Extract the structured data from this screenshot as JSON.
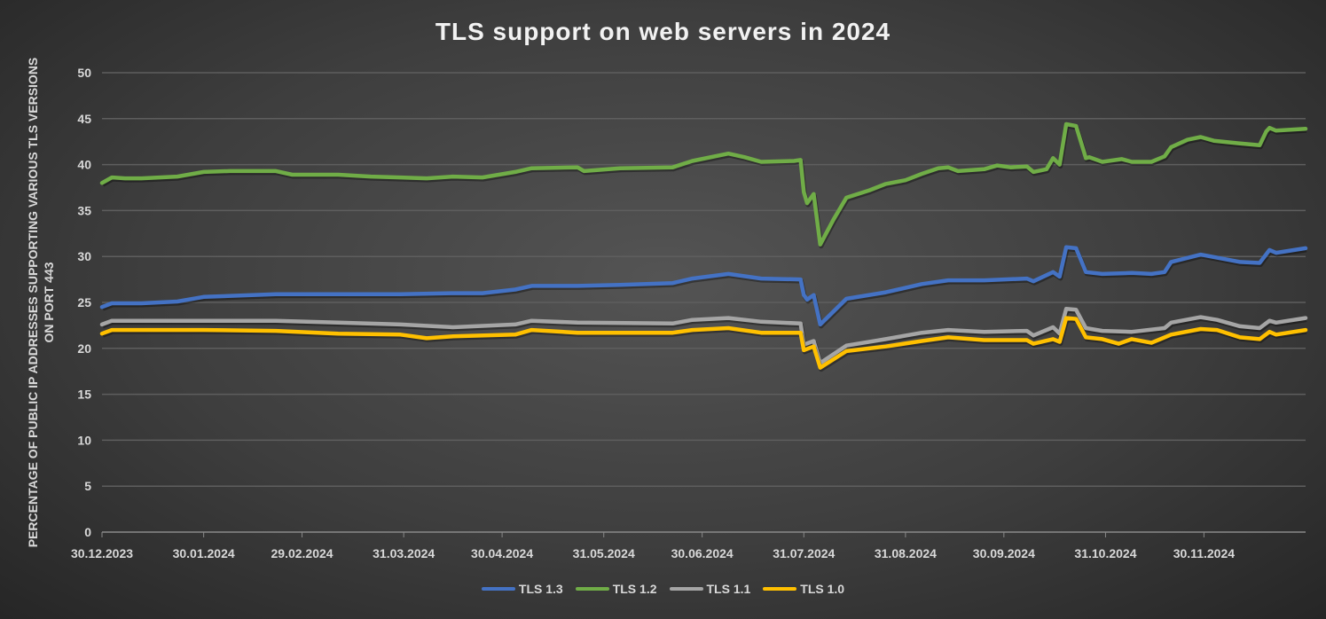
{
  "chart_data": {
    "type": "line",
    "title": "TLS support on web servers in 2024",
    "xlabel": "",
    "ylabel": "PERCENTAGE OF PUBLIC IP ADDRESSES SUPPORTING VARIOUS TLS VERSIONS ON PORT 443",
    "ylim": [
      0,
      50
    ],
    "yticks": [
      0,
      5,
      10,
      15,
      20,
      25,
      30,
      35,
      40,
      45,
      50
    ],
    "x_unit": "days since 30.12.2023",
    "xlim": [
      0,
      367
    ],
    "x_ticks": [
      {
        "label": "30.12.2023",
        "day": 0
      },
      {
        "label": "30.01.2024",
        "day": 31
      },
      {
        "label": "29.02.2024",
        "day": 61
      },
      {
        "label": "31.03.2024",
        "day": 92
      },
      {
        "label": "30.04.2024",
        "day": 122
      },
      {
        "label": "31.05.2024",
        "day": 153
      },
      {
        "label": "30.06.2024",
        "day": 183
      },
      {
        "label": "31.07.2024",
        "day": 214
      },
      {
        "label": "31.08.2024",
        "day": 245
      },
      {
        "label": "30.09.2024",
        "day": 275
      },
      {
        "label": "31.10.2024",
        "day": 306
      },
      {
        "label": "30.11.2024",
        "day": 336
      }
    ],
    "grid": true,
    "legend_position": "bottom",
    "series": [
      {
        "name": "TLS 1.3",
        "color": "#4472c4",
        "points": [
          [
            0,
            24.5
          ],
          [
            3,
            24.9
          ],
          [
            12,
            24.9
          ],
          [
            23,
            25.1
          ],
          [
            31,
            25.6
          ],
          [
            53,
            25.9
          ],
          [
            72,
            25.9
          ],
          [
            91,
            25.9
          ],
          [
            107,
            26
          ],
          [
            116,
            26
          ],
          [
            126,
            26.4
          ],
          [
            131,
            26.8
          ],
          [
            145,
            26.8
          ],
          [
            158,
            26.9
          ],
          [
            174,
            27.1
          ],
          [
            180,
            27.6
          ],
          [
            191,
            28.1
          ],
          [
            201,
            27.6
          ],
          [
            213,
            27.5
          ],
          [
            214,
            25.8
          ],
          [
            215,
            25.3
          ],
          [
            217,
            25.8
          ],
          [
            219,
            22.6
          ],
          [
            223,
            24
          ],
          [
            227,
            25.4
          ],
          [
            239,
            26.1
          ],
          [
            250,
            27
          ],
          [
            258,
            27.4
          ],
          [
            269,
            27.4
          ],
          [
            282,
            27.6
          ],
          [
            284,
            27.3
          ],
          [
            290,
            28.3
          ],
          [
            292,
            27.8
          ],
          [
            294,
            31
          ],
          [
            297,
            30.9
          ],
          [
            300,
            28.3
          ],
          [
            305,
            28.1
          ],
          [
            314,
            28.2
          ],
          [
            320,
            28.1
          ],
          [
            324,
            28.3
          ],
          [
            326,
            29.4
          ],
          [
            335,
            30.2
          ],
          [
            347,
            29.4
          ],
          [
            353,
            29.3
          ],
          [
            356,
            30.7
          ],
          [
            358,
            30.4
          ],
          [
            367,
            30.9
          ]
        ]
      },
      {
        "name": "TLS 1.2",
        "color": "#70ad47",
        "points": [
          [
            0,
            38
          ],
          [
            3,
            38.6
          ],
          [
            7,
            38.5
          ],
          [
            12,
            38.5
          ],
          [
            23,
            38.7
          ],
          [
            31,
            39.2
          ],
          [
            39,
            39.3
          ],
          [
            53,
            39.3
          ],
          [
            58,
            38.9
          ],
          [
            72,
            38.9
          ],
          [
            82,
            38.7
          ],
          [
            91,
            38.6
          ],
          [
            99,
            38.5
          ],
          [
            107,
            38.7
          ],
          [
            116,
            38.6
          ],
          [
            126,
            39.2
          ],
          [
            131,
            39.6
          ],
          [
            145,
            39.7
          ],
          [
            147,
            39.3
          ],
          [
            158,
            39.6
          ],
          [
            174,
            39.7
          ],
          [
            180,
            40.4
          ],
          [
            191,
            41.2
          ],
          [
            196,
            40.8
          ],
          [
            201,
            40.3
          ],
          [
            211,
            40.4
          ],
          [
            213,
            40.5
          ],
          [
            214,
            37
          ],
          [
            215,
            35.8
          ],
          [
            217,
            36.8
          ],
          [
            219,
            31.3
          ],
          [
            223,
            34
          ],
          [
            227,
            36.4
          ],
          [
            234,
            37.2
          ],
          [
            239,
            37.9
          ],
          [
            245,
            38.3
          ],
          [
            250,
            39
          ],
          [
            255,
            39.6
          ],
          [
            258,
            39.7
          ],
          [
            261,
            39.3
          ],
          [
            269,
            39.5
          ],
          [
            273,
            39.9
          ],
          [
            277,
            39.7
          ],
          [
            282,
            39.8
          ],
          [
            284,
            39.2
          ],
          [
            288,
            39.5
          ],
          [
            290,
            40.7
          ],
          [
            292,
            40
          ],
          [
            294,
            44.4
          ],
          [
            297,
            44.2
          ],
          [
            300,
            40.7
          ],
          [
            301,
            40.8
          ],
          [
            305,
            40.3
          ],
          [
            311,
            40.6
          ],
          [
            314,
            40.3
          ],
          [
            320,
            40.3
          ],
          [
            324,
            40.9
          ],
          [
            326,
            41.9
          ],
          [
            331,
            42.7
          ],
          [
            335,
            43
          ],
          [
            339,
            42.6
          ],
          [
            347,
            42.3
          ],
          [
            353,
            42.1
          ],
          [
            355,
            43.6
          ],
          [
            356,
            44
          ],
          [
            358,
            43.7
          ],
          [
            367,
            43.9
          ]
        ]
      },
      {
        "name": "TLS 1.1",
        "color": "#a5a5a5",
        "points": [
          [
            0,
            22.6
          ],
          [
            3,
            23
          ],
          [
            31,
            23
          ],
          [
            53,
            23
          ],
          [
            72,
            22.8
          ],
          [
            91,
            22.6
          ],
          [
            107,
            22.3
          ],
          [
            126,
            22.6
          ],
          [
            131,
            23
          ],
          [
            145,
            22.8
          ],
          [
            174,
            22.7
          ],
          [
            180,
            23.1
          ],
          [
            191,
            23.3
          ],
          [
            201,
            22.9
          ],
          [
            213,
            22.7
          ],
          [
            214,
            20.4
          ],
          [
            217,
            20.8
          ],
          [
            219,
            18.4
          ],
          [
            227,
            20.3
          ],
          [
            239,
            21
          ],
          [
            250,
            21.7
          ],
          [
            258,
            22
          ],
          [
            269,
            21.8
          ],
          [
            282,
            21.9
          ],
          [
            284,
            21.4
          ],
          [
            290,
            22.3
          ],
          [
            292,
            21.6
          ],
          [
            294,
            24.3
          ],
          [
            297,
            24.2
          ],
          [
            300,
            22.2
          ],
          [
            305,
            21.9
          ],
          [
            314,
            21.8
          ],
          [
            324,
            22.2
          ],
          [
            326,
            22.8
          ],
          [
            335,
            23.4
          ],
          [
            340,
            23.1
          ],
          [
            347,
            22.4
          ],
          [
            353,
            22.2
          ],
          [
            356,
            23
          ],
          [
            358,
            22.8
          ],
          [
            367,
            23.3
          ]
        ]
      },
      {
        "name": "TLS 1.0",
        "color": "#ffc000",
        "points": [
          [
            0,
            21.6
          ],
          [
            3,
            22
          ],
          [
            31,
            22
          ],
          [
            53,
            21.9
          ],
          [
            72,
            21.6
          ],
          [
            91,
            21.5
          ],
          [
            99,
            21.1
          ],
          [
            107,
            21.3
          ],
          [
            126,
            21.5
          ],
          [
            131,
            22
          ],
          [
            145,
            21.7
          ],
          [
            174,
            21.7
          ],
          [
            180,
            22
          ],
          [
            191,
            22.2
          ],
          [
            201,
            21.7
          ],
          [
            213,
            21.7
          ],
          [
            214,
            19.8
          ],
          [
            217,
            20.2
          ],
          [
            219,
            17.9
          ],
          [
            227,
            19.7
          ],
          [
            239,
            20.2
          ],
          [
            250,
            20.8
          ],
          [
            258,
            21.2
          ],
          [
            269,
            20.9
          ],
          [
            282,
            20.9
          ],
          [
            284,
            20.5
          ],
          [
            290,
            21
          ],
          [
            292,
            20.7
          ],
          [
            294,
            23.3
          ],
          [
            297,
            23.2
          ],
          [
            300,
            21.2
          ],
          [
            305,
            21
          ],
          [
            310,
            20.5
          ],
          [
            314,
            21
          ],
          [
            320,
            20.6
          ],
          [
            324,
            21.2
          ],
          [
            326,
            21.5
          ],
          [
            335,
            22.1
          ],
          [
            340,
            22
          ],
          [
            347,
            21.2
          ],
          [
            353,
            21
          ],
          [
            356,
            21.8
          ],
          [
            358,
            21.5
          ],
          [
            367,
            22
          ]
        ]
      }
    ]
  }
}
